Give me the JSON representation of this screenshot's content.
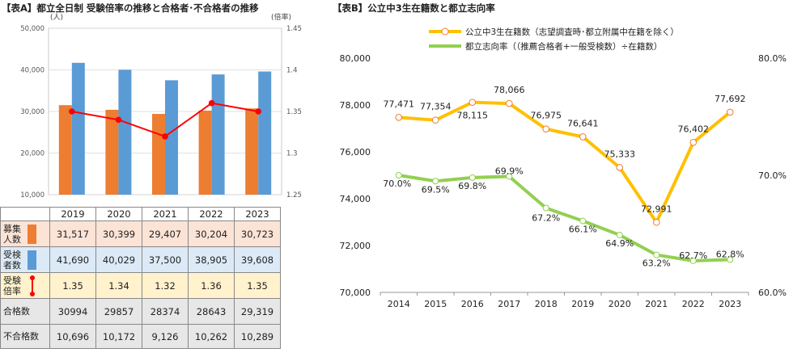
{
  "panel_a": {
    "title": "【表A】都立全日制 受験倍率の推移と合格者･不合格者の推移",
    "left_unit": "(人)",
    "right_unit": "(倍率)",
    "table": {
      "years": [
        "2019",
        "2020",
        "2021",
        "2022",
        "2023"
      ],
      "rows": [
        {
          "label_line1": "募集",
          "label_line2": "人数",
          "values": [
            "31,517",
            "30,399",
            "29,407",
            "30,204",
            "30,723"
          ]
        },
        {
          "label_line1": "受検",
          "label_line2": "者数",
          "values": [
            "41,690",
            "40,029",
            "37,500",
            "38,905",
            "39,608"
          ]
        },
        {
          "label_line1": "受験",
          "label_line2": "倍率",
          "values": [
            "1.35",
            "1.34",
            "1.32",
            "1.36",
            "1.35"
          ]
        },
        {
          "label_line1": "合格数",
          "label_line2": "",
          "values": [
            "30994",
            "29857",
            "28374",
            "28643",
            "29,319"
          ]
        },
        {
          "label_line1": "不合格数",
          "label_line2": "",
          "values": [
            "10,696",
            "10,172",
            "9,126",
            "10,262",
            "10,289"
          ]
        }
      ]
    }
  },
  "panel_b": {
    "title": "【表B】公立中3生在籍数と都立志向率",
    "legend": [
      "公立中3生在籍数（志望調査時･都立附属中在籍を除く）",
      "都立志向率（（推薦合格者+一般受検数）÷在籍数）"
    ]
  },
  "chart_data": [
    {
      "type": "bar",
      "categories": [
        "2019",
        "2020",
        "2021",
        "2022",
        "2023"
      ],
      "series": [
        {
          "name": "募集人数",
          "kind": "bar",
          "axis": "left",
          "values": [
            31517,
            30399,
            29407,
            30204,
            30723
          ],
          "color": "#ed7d31"
        },
        {
          "name": "受検者数",
          "kind": "bar",
          "axis": "left",
          "values": [
            41690,
            40029,
            37500,
            38905,
            39608
          ],
          "color": "#5b9bd5"
        },
        {
          "name": "受験倍率",
          "kind": "line",
          "axis": "right",
          "values": [
            1.35,
            1.34,
            1.32,
            1.36,
            1.35
          ],
          "color": "#ff0000"
        }
      ],
      "yleft": {
        "min": 10000,
        "max": 50000,
        "ticks": [
          "10,000",
          "20,000",
          "30,000",
          "40,000",
          "50,000"
        ]
      },
      "yright": {
        "min": 1.25,
        "max": 1.45,
        "ticks": [
          "1.25",
          "1.3",
          "1.35",
          "1.4",
          "1.45"
        ]
      },
      "grid": true
    },
    {
      "type": "line",
      "x": [
        "2014",
        "2015",
        "2016",
        "2017",
        "2018",
        "2019",
        "2020",
        "2021",
        "2022",
        "2023"
      ],
      "series": [
        {
          "name": "公立中3生在籍数",
          "axis": "left",
          "values": [
            77471,
            77354,
            78115,
            78066,
            76975,
            76641,
            75333,
            72991,
            76402,
            77692
          ],
          "labels": [
            "77,471",
            "77,354",
            "78,115",
            "78,066",
            "76,975",
            "76,641",
            "75,333",
            "72,991",
            "76,402",
            "77,692"
          ],
          "color": "#ffc000"
        },
        {
          "name": "都立志向率",
          "axis": "right",
          "values": [
            70.0,
            69.5,
            69.8,
            69.9,
            67.2,
            66.1,
            64.9,
            63.2,
            62.7,
            62.8
          ],
          "labels": [
            "70.0%",
            "69.5%",
            "69.8%",
            "69.9%",
            "67.2%",
            "66.1%",
            "64.9%",
            "63.2%",
            "62.7%",
            "62.8%"
          ],
          "color": "#92d050"
        }
      ],
      "yleft": {
        "min": 70000,
        "max": 80000,
        "ticks": [
          "70,000",
          "72,000",
          "74,000",
          "76,000",
          "78,000",
          "80,000"
        ]
      },
      "yright": {
        "min": 60,
        "max": 80,
        "ticks": [
          "60.0%",
          "70.0%",
          "80.0%"
        ]
      },
      "grid": false
    }
  ]
}
